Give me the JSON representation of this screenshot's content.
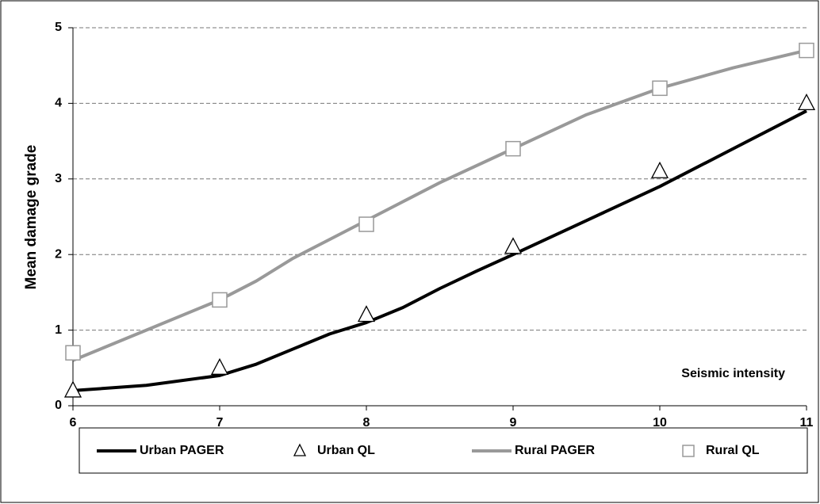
{
  "chart_data": {
    "type": "line",
    "ylabel": "Mean damage grade",
    "annotation": "Seismic intensity",
    "xlim": [
      6,
      11
    ],
    "xticks": [
      6,
      7,
      8,
      9,
      10,
      11
    ],
    "ylim": [
      0,
      5
    ],
    "yticks": [
      0,
      1,
      2,
      3,
      4,
      5
    ],
    "grid": true,
    "series": [
      {
        "name": "Urban PAGER",
        "color": "#000000",
        "marker": "none",
        "x": [
          6,
          6.5,
          7,
          7.25,
          7.5,
          7.75,
          8,
          8.25,
          8.5,
          8.75,
          9,
          9.5,
          10,
          10.5,
          11
        ],
        "values": [
          0.2,
          0.27,
          0.4,
          0.55,
          0.75,
          0.95,
          1.1,
          1.3,
          1.55,
          1.78,
          2.0,
          2.45,
          2.9,
          3.4,
          3.9
        ]
      },
      {
        "name": "Urban QL",
        "color": "#000000",
        "marker": "triangle",
        "x": [
          6,
          7,
          8,
          9,
          10,
          11
        ],
        "values": [
          0.2,
          0.5,
          1.2,
          2.1,
          3.1,
          4.0
        ]
      },
      {
        "name": "Rural PAGER",
        "color": "#999999",
        "marker": "none",
        "x": [
          6,
          6.5,
          7,
          7.25,
          7.5,
          7.75,
          8,
          8.5,
          9,
          9.5,
          10,
          10.5,
          11
        ],
        "values": [
          0.6,
          1.0,
          1.4,
          1.65,
          1.95,
          2.2,
          2.45,
          2.95,
          3.4,
          3.85,
          4.2,
          4.47,
          4.7
        ]
      },
      {
        "name": "Rural QL",
        "color": "#999999",
        "marker": "square",
        "x": [
          6,
          7,
          8,
          9,
          10,
          11
        ],
        "values": [
          0.7,
          1.4,
          2.4,
          3.4,
          4.2,
          4.7
        ]
      }
    ]
  }
}
